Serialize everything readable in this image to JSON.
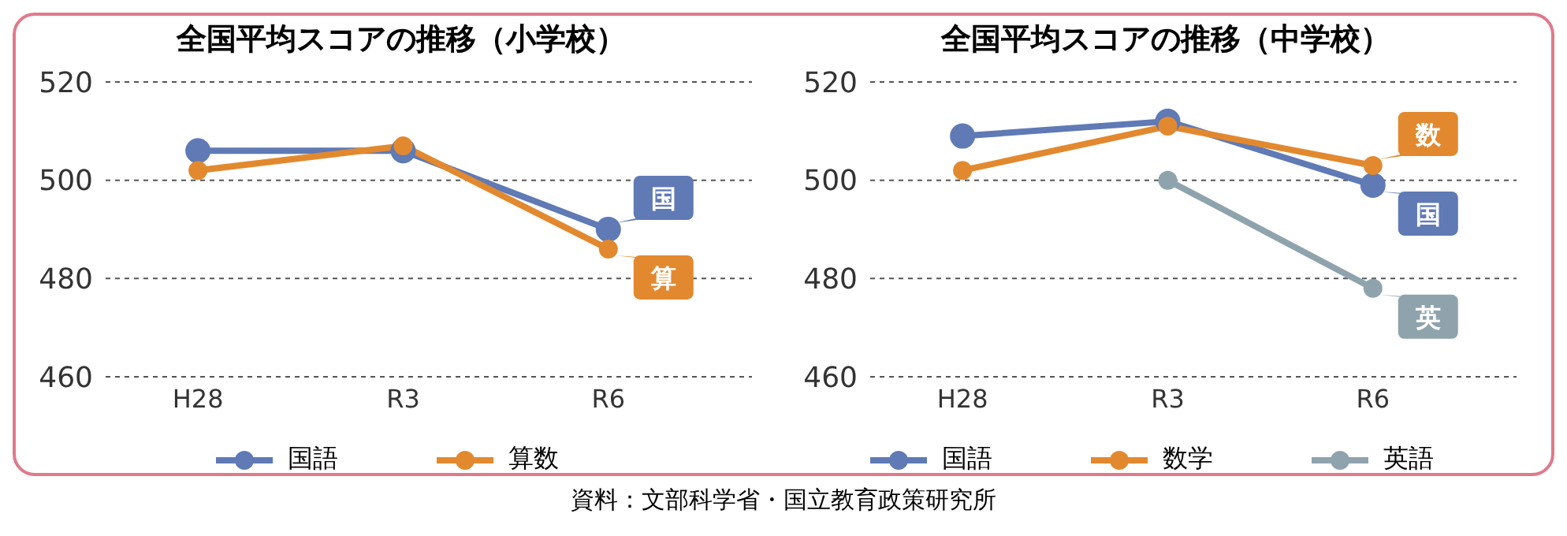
{
  "chart_data": [
    {
      "type": "line",
      "title": "全国平均スコアの推移（小学校）",
      "categories": [
        "H28",
        "R3",
        "R6"
      ],
      "series": [
        {
          "name": "国語",
          "color": "#5f7ab5",
          "values": [
            506,
            506,
            490
          ]
        },
        {
          "name": "算数",
          "color": "#e2892f",
          "values": [
            502,
            507,
            486
          ]
        }
      ],
      "ylim": [
        460,
        520
      ],
      "yticks": [
        460,
        480,
        500,
        520
      ],
      "grid": "y",
      "legend": "bottom",
      "marker": "circle",
      "line_style": "solid",
      "annotations": [
        {
          "text": "国",
          "x": "R6",
          "y": 490
        },
        {
          "text": "算",
          "x": "R6",
          "y": 486
        },
        "資料：文部科学省・国立教育政策研究所"
      ]
    },
    {
      "type": "line",
      "title": "全国平均スコアの推移（中学校）",
      "categories": [
        "H28",
        "R3",
        "R6"
      ],
      "series": [
        {
          "name": "国語",
          "color": "#5f7ab5",
          "values": [
            509,
            512,
            499
          ]
        },
        {
          "name": "数学",
          "color": "#e2892f",
          "values": [
            502,
            511,
            503
          ]
        },
        {
          "name": "英語",
          "color": "#8fa3ad",
          "values": [
            null,
            500,
            478
          ]
        }
      ],
      "ylim": [
        460,
        520
      ],
      "yticks": [
        460,
        480,
        500,
        520
      ],
      "grid": "y",
      "legend": "bottom",
      "marker": "circle",
      "line_style": "solid",
      "annotations": [
        {
          "text": "数",
          "x": "R6",
          "y": 503
        },
        {
          "text": "国",
          "x": "R6",
          "y": 499
        },
        {
          "text": "英",
          "x": "R6",
          "y": 478
        }
      ]
    }
  ]
}
